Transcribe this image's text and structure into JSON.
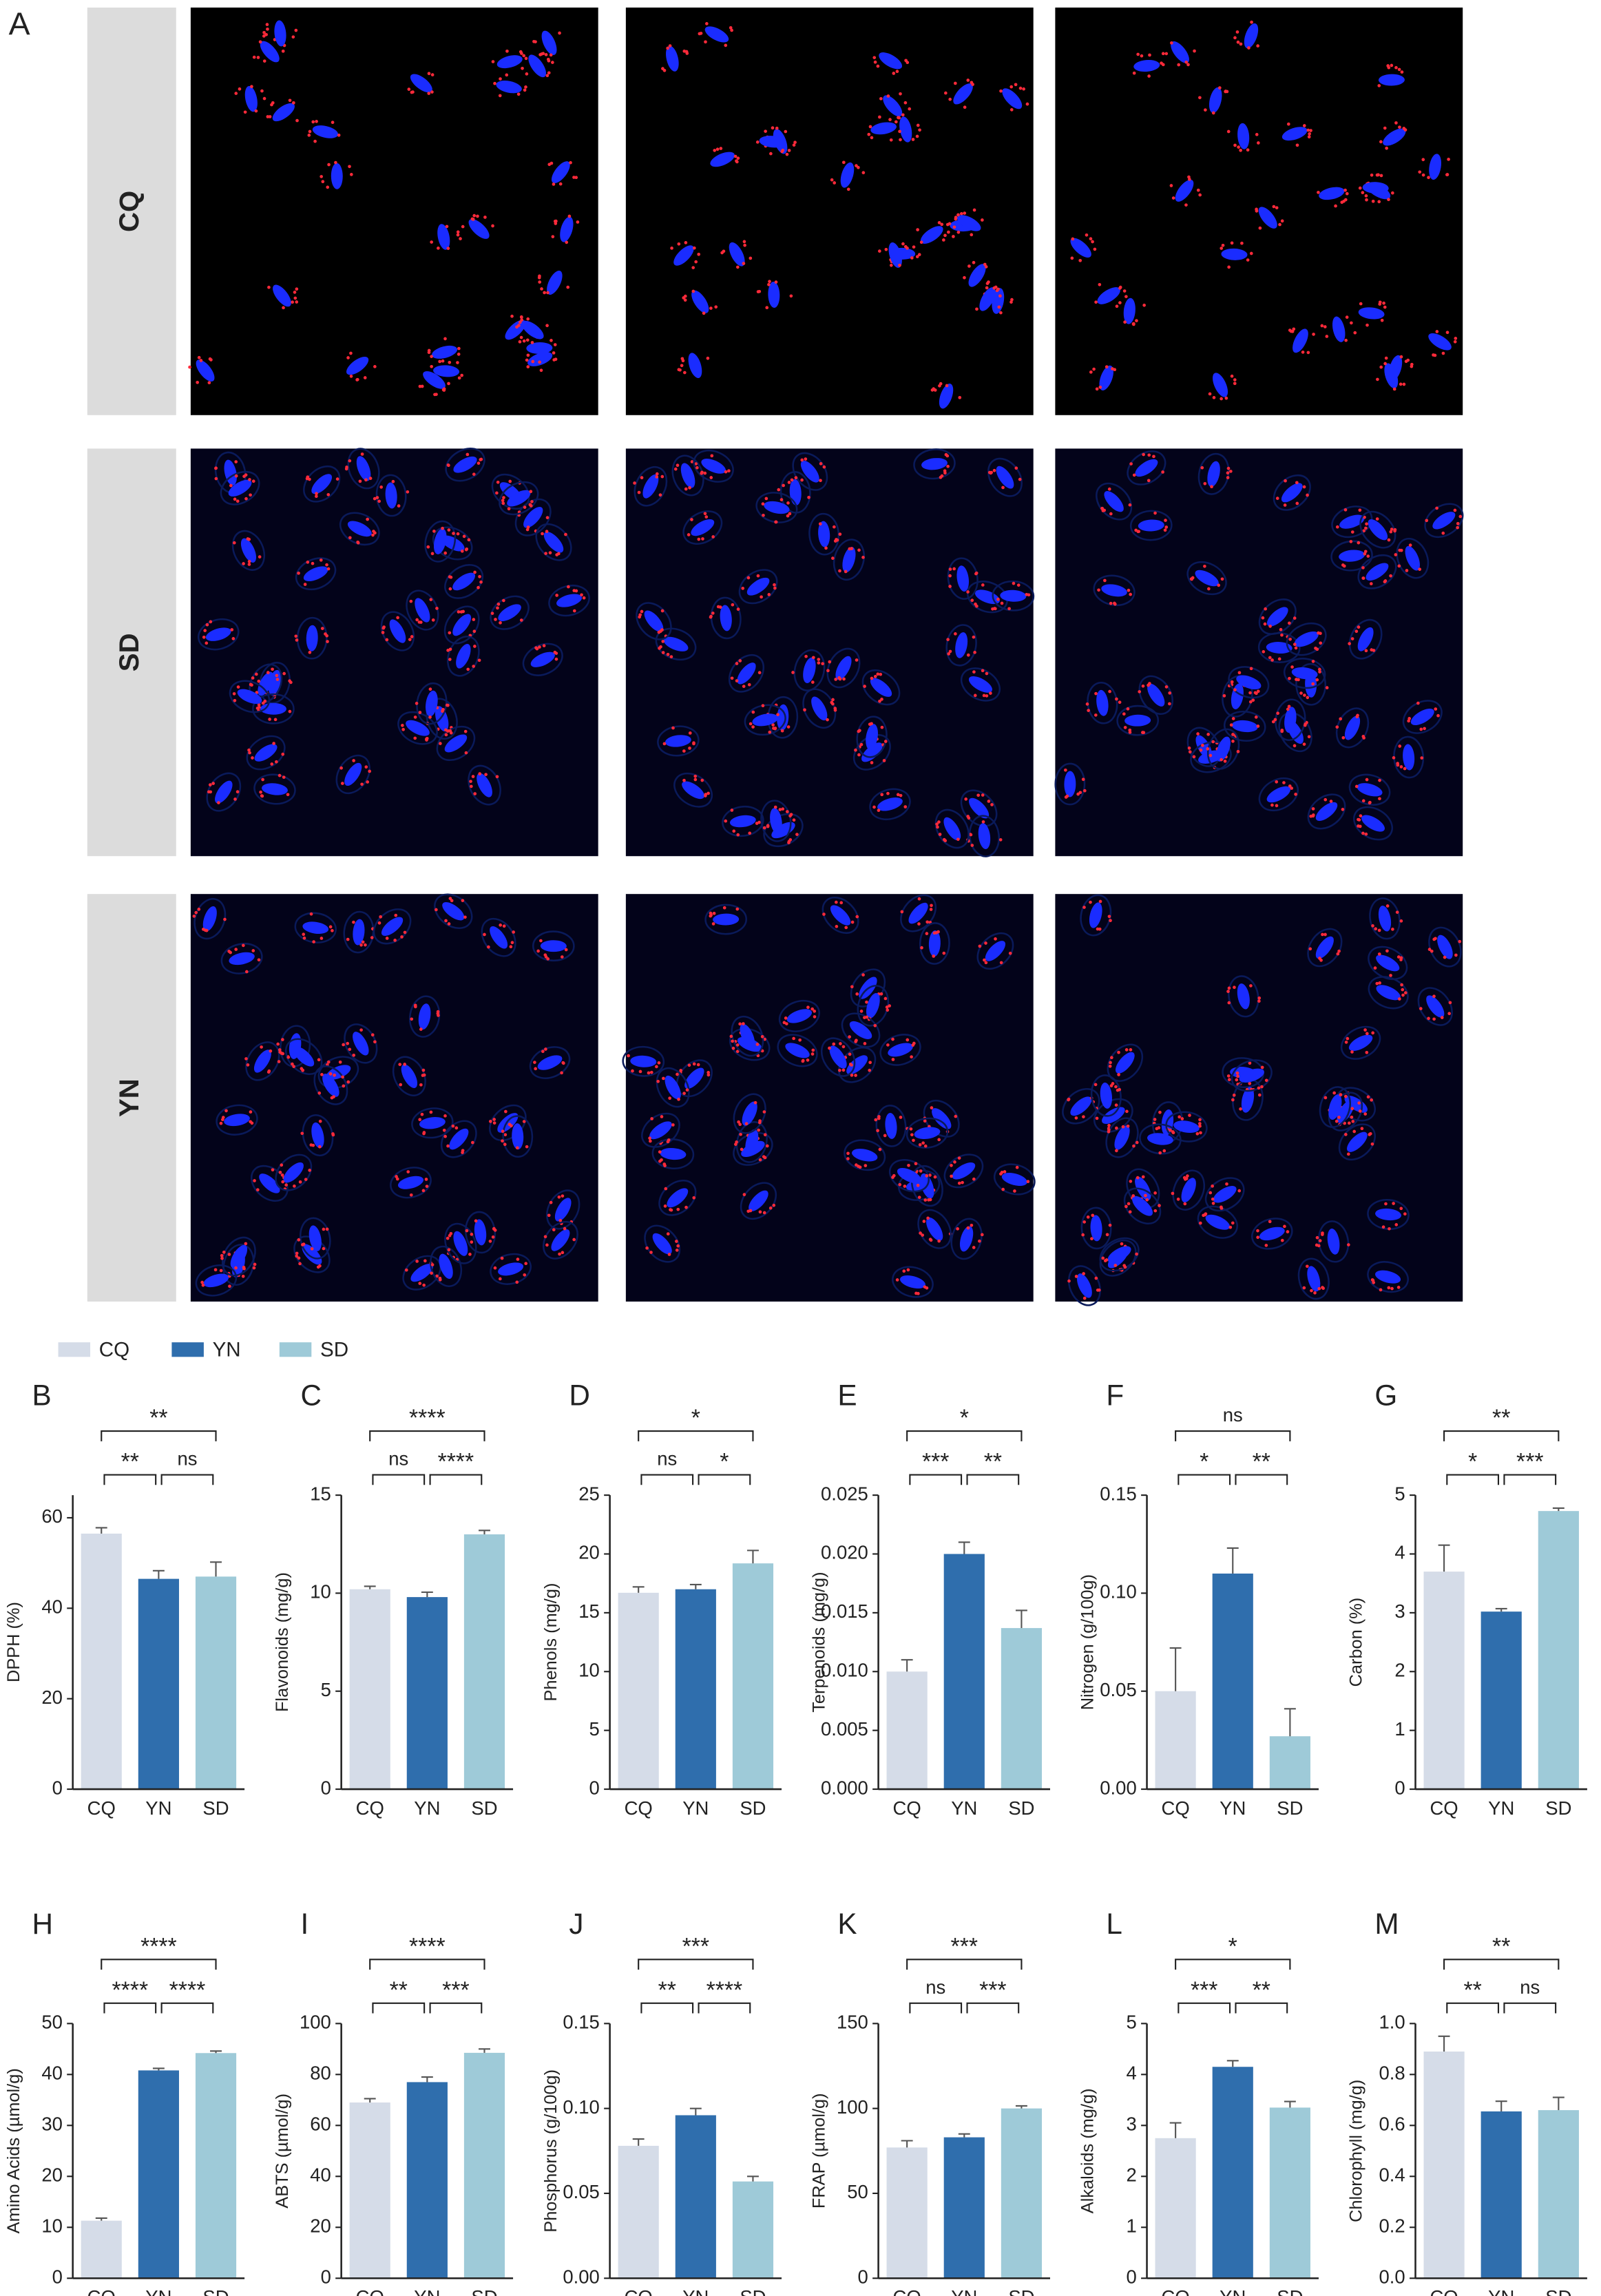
{
  "panel_a": {
    "label": "A",
    "rows": [
      "CQ",
      "SD",
      "YN"
    ]
  },
  "legend": {
    "series": [
      {
        "name": "CQ",
        "color": "#d5dce8"
      },
      {
        "name": "YN",
        "color": "#2f6ead"
      },
      {
        "name": "SD",
        "color": "#9ecad8"
      }
    ]
  },
  "chart_data": [
    {
      "type": "bar",
      "panel": "B",
      "ylabel": "DPPH (%)",
      "categories": [
        "CQ",
        "YN",
        "SD"
      ],
      "values": [
        56.5,
        46.5,
        47
      ],
      "errors": [
        1.3,
        1.8,
        3.2
      ],
      "ylim": [
        0,
        65
      ],
      "yticks": [
        0,
        20,
        40,
        60
      ],
      "comparisons": [
        {
          "pair": [
            "CQ",
            "YN"
          ],
          "label": "**"
        },
        {
          "pair": [
            "YN",
            "SD"
          ],
          "label": "ns"
        },
        {
          "pair": [
            "CQ",
            "SD"
          ],
          "label": "**"
        }
      ]
    },
    {
      "type": "bar",
      "panel": "C",
      "ylabel": "Flavonoids (mg/g)",
      "categories": [
        "CQ",
        "YN",
        "SD"
      ],
      "values": [
        10.2,
        9.8,
        13.0
      ],
      "errors": [
        0.15,
        0.25,
        0.2
      ],
      "ylim": [
        0,
        15
      ],
      "yticks": [
        0,
        5,
        10,
        15
      ],
      "comparisons": [
        {
          "pair": [
            "CQ",
            "YN"
          ],
          "label": "ns"
        },
        {
          "pair": [
            "YN",
            "SD"
          ],
          "label": "****"
        },
        {
          "pair": [
            "CQ",
            "SD"
          ],
          "label": "****"
        }
      ]
    },
    {
      "type": "bar",
      "panel": "D",
      "ylabel": "Phenols (mg/g)",
      "categories": [
        "CQ",
        "YN",
        "SD"
      ],
      "values": [
        16.7,
        17.0,
        19.2
      ],
      "errors": [
        0.5,
        0.4,
        1.1
      ],
      "ylim": [
        0,
        25
      ],
      "yticks": [
        0,
        5,
        10,
        15,
        20,
        25
      ],
      "comparisons": [
        {
          "pair": [
            "CQ",
            "YN"
          ],
          "label": "ns"
        },
        {
          "pair": [
            "YN",
            "SD"
          ],
          "label": "*"
        },
        {
          "pair": [
            "CQ",
            "SD"
          ],
          "label": "*"
        }
      ]
    },
    {
      "type": "bar",
      "panel": "E",
      "ylabel": "Terpenoids (mg/g)",
      "categories": [
        "CQ",
        "YN",
        "SD"
      ],
      "values": [
        0.01,
        0.02,
        0.0137
      ],
      "errors": [
        0.001,
        0.001,
        0.0015
      ],
      "ylim": [
        0,
        0.025
      ],
      "yticks": [
        {
          "value": 0,
          "label": "0.000"
        },
        {
          "value": 0.005,
          "label": "0.005"
        },
        {
          "value": 0.01,
          "label": "0.010"
        },
        {
          "value": 0.015,
          "label": "0.015"
        },
        {
          "value": 0.02,
          "label": "0.020"
        },
        {
          "value": 0.025,
          "label": "0.025"
        }
      ],
      "comparisons": [
        {
          "pair": [
            "CQ",
            "YN"
          ],
          "label": "***"
        },
        {
          "pair": [
            "YN",
            "SD"
          ],
          "label": "**"
        },
        {
          "pair": [
            "CQ",
            "SD"
          ],
          "label": "*"
        }
      ]
    },
    {
      "type": "bar",
      "panel": "F",
      "ylabel": "Nitrogen (g/100g)",
      "categories": [
        "CQ",
        "YN",
        "SD"
      ],
      "values": [
        0.05,
        0.11,
        0.027
      ],
      "errors": [
        0.022,
        0.013,
        0.014
      ],
      "ylim": [
        0,
        0.15
      ],
      "yticks": [
        {
          "value": 0,
          "label": "0.00"
        },
        {
          "value": 0.05,
          "label": "0.05"
        },
        {
          "value": 0.1,
          "label": "0.10"
        },
        {
          "value": 0.15,
          "label": "0.15"
        }
      ],
      "comparisons": [
        {
          "pair": [
            "CQ",
            "YN"
          ],
          "label": "*"
        },
        {
          "pair": [
            "YN",
            "SD"
          ],
          "label": "**"
        },
        {
          "pair": [
            "CQ",
            "SD"
          ],
          "label": "ns"
        }
      ]
    },
    {
      "type": "bar",
      "panel": "G",
      "ylabel": "Carbon (%)",
      "categories": [
        "CQ",
        "YN",
        "SD"
      ],
      "values": [
        3.7,
        3.02,
        4.73
      ],
      "errors": [
        0.45,
        0.05,
        0.05
      ],
      "ylim": [
        0,
        5
      ],
      "yticks": [
        0,
        1,
        2,
        3,
        4,
        5
      ],
      "comparisons": [
        {
          "pair": [
            "CQ",
            "YN"
          ],
          "label": "*"
        },
        {
          "pair": [
            "YN",
            "SD"
          ],
          "label": "***"
        },
        {
          "pair": [
            "CQ",
            "SD"
          ],
          "label": "**"
        }
      ]
    },
    {
      "type": "bar",
      "panel": "H",
      "ylabel": "Amino Acids (µmol/g)",
      "categories": [
        "CQ",
        "YN",
        "SD"
      ],
      "values": [
        11.3,
        40.8,
        44.2
      ],
      "errors": [
        0.5,
        0.4,
        0.4
      ],
      "ylim": [
        0,
        50
      ],
      "yticks": [
        0,
        10,
        20,
        30,
        40,
        50
      ],
      "comparisons": [
        {
          "pair": [
            "CQ",
            "YN"
          ],
          "label": "****"
        },
        {
          "pair": [
            "YN",
            "SD"
          ],
          "label": "****"
        },
        {
          "pair": [
            "CQ",
            "SD"
          ],
          "label": "****"
        }
      ]
    },
    {
      "type": "bar",
      "panel": "I",
      "ylabel": "ABTS (µmol/g)",
      "categories": [
        "CQ",
        "YN",
        "SD"
      ],
      "values": [
        69,
        77,
        88.5
      ],
      "errors": [
        1.5,
        2,
        1.5
      ],
      "ylim": [
        0,
        100
      ],
      "yticks": [
        0,
        20,
        40,
        60,
        80,
        100
      ],
      "comparisons": [
        {
          "pair": [
            "CQ",
            "YN"
          ],
          "label": "**"
        },
        {
          "pair": [
            "YN",
            "SD"
          ],
          "label": "***"
        },
        {
          "pair": [
            "CQ",
            "SD"
          ],
          "label": "****"
        }
      ]
    },
    {
      "type": "bar",
      "panel": "J",
      "ylabel": "Phosphorus (g/100g)",
      "categories": [
        "CQ",
        "YN",
        "SD"
      ],
      "values": [
        0.078,
        0.096,
        0.057
      ],
      "errors": [
        0.004,
        0.004,
        0.003
      ],
      "ylim": [
        0,
        0.15
      ],
      "yticks": [
        {
          "value": 0,
          "label": "0.00"
        },
        {
          "value": 0.05,
          "label": "0.05"
        },
        {
          "value": 0.1,
          "label": "0.10"
        },
        {
          "value": 0.15,
          "label": "0.15"
        }
      ],
      "comparisons": [
        {
          "pair": [
            "CQ",
            "YN"
          ],
          "label": "**"
        },
        {
          "pair": [
            "YN",
            "SD"
          ],
          "label": "****"
        },
        {
          "pair": [
            "CQ",
            "SD"
          ],
          "label": "***"
        }
      ]
    },
    {
      "type": "bar",
      "panel": "K",
      "ylabel": "FRAP (µmol/g)",
      "categories": [
        "CQ",
        "YN",
        "SD"
      ],
      "values": [
        77,
        83,
        100
      ],
      "errors": [
        4,
        2,
        1.5
      ],
      "ylim": [
        0,
        150
      ],
      "yticks": [
        0,
        50,
        100,
        150
      ],
      "comparisons": [
        {
          "pair": [
            "CQ",
            "YN"
          ],
          "label": "ns"
        },
        {
          "pair": [
            "YN",
            "SD"
          ],
          "label": "***"
        },
        {
          "pair": [
            "CQ",
            "SD"
          ],
          "label": "***"
        }
      ]
    },
    {
      "type": "bar",
      "panel": "L",
      "ylabel": "Alkaloids (mg/g)",
      "categories": [
        "CQ",
        "YN",
        "SD"
      ],
      "values": [
        2.75,
        4.15,
        3.35
      ],
      "errors": [
        0.3,
        0.12,
        0.12
      ],
      "ylim": [
        0,
        5
      ],
      "yticks": [
        0,
        1,
        2,
        3,
        4,
        5
      ],
      "comparisons": [
        {
          "pair": [
            "CQ",
            "YN"
          ],
          "label": "***"
        },
        {
          "pair": [
            "YN",
            "SD"
          ],
          "label": "**"
        },
        {
          "pair": [
            "CQ",
            "SD"
          ],
          "label": "*"
        }
      ]
    },
    {
      "type": "bar",
      "panel": "M",
      "ylabel": "Chlorophyll (mg/g)",
      "categories": [
        "CQ",
        "YN",
        "SD"
      ],
      "values": [
        0.89,
        0.655,
        0.66
      ],
      "errors": [
        0.06,
        0.04,
        0.05
      ],
      "ylim": [
        0,
        1.0
      ],
      "yticks": [
        {
          "value": 0,
          "label": "0.0"
        },
        {
          "value": 0.2,
          "label": "0.2"
        },
        {
          "value": 0.4,
          "label": "0.4"
        },
        {
          "value": 0.6,
          "label": "0.6"
        },
        {
          "value": 0.8,
          "label": "0.8"
        },
        {
          "value": 1.0,
          "label": "1.0"
        }
      ],
      "comparisons": [
        {
          "pair": [
            "CQ",
            "YN"
          ],
          "label": "**"
        },
        {
          "pair": [
            "YN",
            "SD"
          ],
          "label": "ns"
        },
        {
          "pair": [
            "CQ",
            "SD"
          ],
          "label": "**"
        }
      ]
    }
  ]
}
